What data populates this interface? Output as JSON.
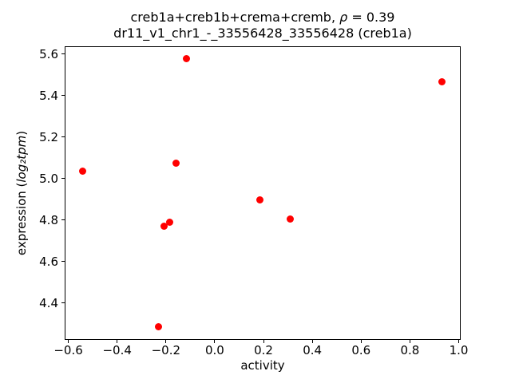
{
  "figure": {
    "title_line1_pre": "creb1a+creb1b+crema+cremb, ",
    "title_rho": "ρ",
    "title_line1_post": " = 0.39",
    "title_line2": "dr11_v1_chr1_-_33556428_33556428 (creb1a)",
    "xlabel": "activity",
    "ylabel_pre": "expression (",
    "ylabel_italic": "log₂tpm",
    "ylabel_post": ")"
  },
  "chart_data": {
    "type": "scatter",
    "title": "creb1a+creb1b+crema+cremb, ρ = 0.39",
    "subtitle": "dr11_v1_chr1_-_33556428_33556428 (creb1a)",
    "rho": 0.39,
    "xlabel": "activity",
    "ylabel": "expression (log2 tpm)",
    "marker_color": "#ff0000",
    "marker_size_px": 9,
    "grid": false,
    "legend_position": "none",
    "xlim": [
      -0.615,
      1.008
    ],
    "ylim": [
      4.223,
      5.638
    ],
    "xticks": [
      -0.6,
      -0.4,
      -0.2,
      0.0,
      0.2,
      0.4,
      0.6,
      0.8,
      1.0
    ],
    "xtick_labels": [
      "−0.6",
      "−0.4",
      "−0.2",
      "0.0",
      "0.2",
      "0.4",
      "0.6",
      "0.8",
      "1.0"
    ],
    "yticks": [
      4.4,
      4.6,
      4.8,
      5.0,
      5.2,
      5.4,
      5.6
    ],
    "ytick_labels": [
      "4.4",
      "4.6",
      "4.8",
      "5.0",
      "5.2",
      "5.4",
      "5.6"
    ],
    "points": [
      {
        "x": -0.116,
        "y": 5.578
      },
      {
        "x": 0.932,
        "y": 5.468
      },
      {
        "x": -0.541,
        "y": 5.035
      },
      {
        "x": -0.159,
        "y": 5.075
      },
      {
        "x": 0.185,
        "y": 4.897
      },
      {
        "x": 0.31,
        "y": 4.807
      },
      {
        "x": -0.208,
        "y": 4.772
      },
      {
        "x": -0.186,
        "y": 4.791
      },
      {
        "x": -0.23,
        "y": 4.285
      }
    ]
  }
}
